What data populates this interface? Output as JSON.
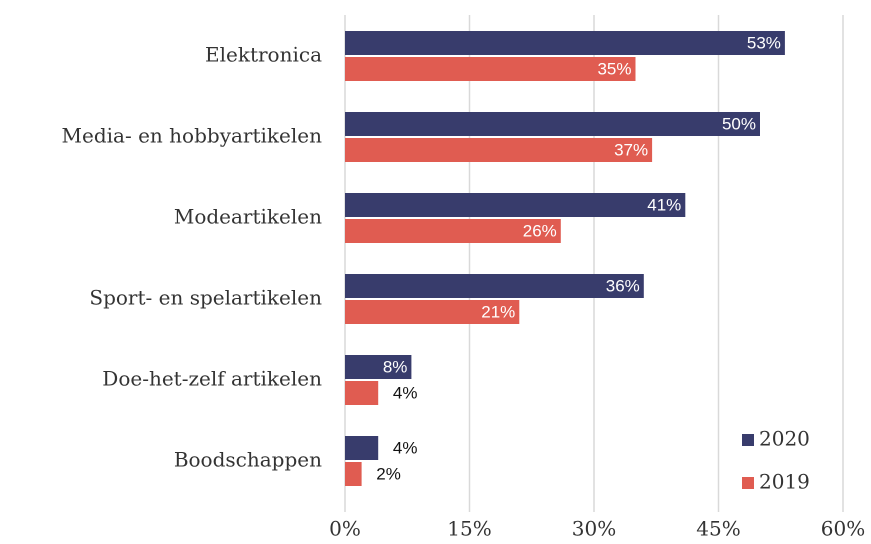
{
  "chart_data": {
    "type": "hbar",
    "categories": [
      "Elektronica",
      "Media- en hobbyartikelen",
      "Modeartikelen",
      "Sport- en spelartikelen",
      "Doe-het-zelf artikelen",
      "Boodschappen"
    ],
    "series": [
      {
        "name": "2020",
        "color": "#383c6c",
        "values": [
          53,
          50,
          41,
          36,
          8,
          4
        ],
        "value_labels": [
          "53%",
          "50%",
          "41%",
          "36%",
          "8%",
          "4%"
        ]
      },
      {
        "name": "2019",
        "color": "#e05c51",
        "values": [
          35,
          37,
          26,
          21,
          4,
          2
        ],
        "value_labels": [
          "35%",
          "37%",
          "26%",
          "21%",
          "4%",
          "2%"
        ]
      }
    ],
    "xlim": [
      0,
      60
    ],
    "xticks": [
      {
        "value": 0,
        "label": "0%"
      },
      {
        "value": 15,
        "label": "15%"
      },
      {
        "value": 30,
        "label": "30%"
      },
      {
        "value": 45,
        "label": "45%"
      },
      {
        "value": 60,
        "label": "60%"
      }
    ],
    "grid": true,
    "legend": "lower right"
  }
}
